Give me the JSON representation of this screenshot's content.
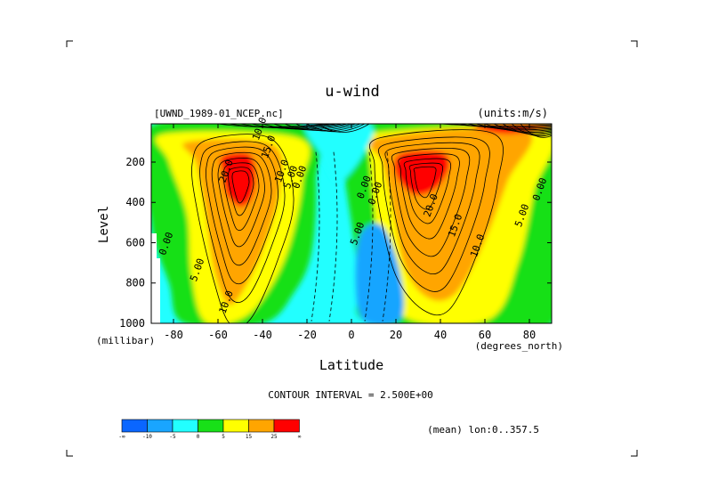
{
  "chart_data": {
    "type": "contour",
    "title": "u-wind",
    "file_label": "[UWND_1989-01_NCEP.nc]",
    "units_label": "(units:m/s)",
    "xlabel": "Latitude",
    "ylabel": "Level",
    "x_unit_label": "(degrees_north)",
    "y_unit_label": "(millibar)",
    "xlim": [
      -90,
      90
    ],
    "ylim": [
      1000,
      10
    ],
    "x_ticks": [
      -80,
      -60,
      -40,
      -20,
      0,
      20,
      40,
      60,
      80
    ],
    "y_ticks": [
      200,
      400,
      600,
      800,
      1000
    ],
    "contour_interval_label": "CONTOUR INTERVAL = 2.500E+00",
    "mean_label": "(mean) lon:0..357.5",
    "contour_labels": [
      {
        "text": "20.0",
        "lat": -55,
        "lev": 250
      },
      {
        "text": "15.0",
        "lat": -36,
        "lev": 130
      },
      {
        "text": "10.0",
        "lat": -30,
        "lev": 250
      },
      {
        "text": "5.00",
        "lat": -26,
        "lev": 280
      },
      {
        "text": "0.00",
        "lat": -22,
        "lev": 280
      },
      {
        "text": "10.0",
        "lat": -40,
        "lev": 40
      },
      {
        "text": "0.00",
        "lat": 7,
        "lev": 330
      },
      {
        "text": "0.00",
        "lat": 12,
        "lev": 360
      },
      {
        "text": "5.00",
        "lat": 4,
        "lev": 560
      },
      {
        "text": "20.0",
        "lat": 37,
        "lev": 420
      },
      {
        "text": "15.0",
        "lat": 48,
        "lev": 520
      },
      {
        "text": "10.0",
        "lat": 58,
        "lev": 620
      },
      {
        "text": "5.00",
        "lat": 78,
        "lev": 470
      },
      {
        "text": "0.00",
        "lat": 86,
        "lev": 340
      },
      {
        "text": "0.00",
        "lat": -82,
        "lev": 610
      },
      {
        "text": "5.00",
        "lat": -68,
        "lev": 740
      },
      {
        "text": "10.0",
        "lat": -55,
        "lev": 900
      }
    ],
    "colorbar": {
      "tick_labels": [
        "-∞",
        "-10",
        "-5",
        "0",
        "5",
        "15",
        "25",
        "∞"
      ],
      "bin_colors": [
        "#0a66ff",
        "#19a5ff",
        "#22ffff",
        "#18e018",
        "#ffff00",
        "#ffa500",
        "#ff0000"
      ]
    }
  }
}
